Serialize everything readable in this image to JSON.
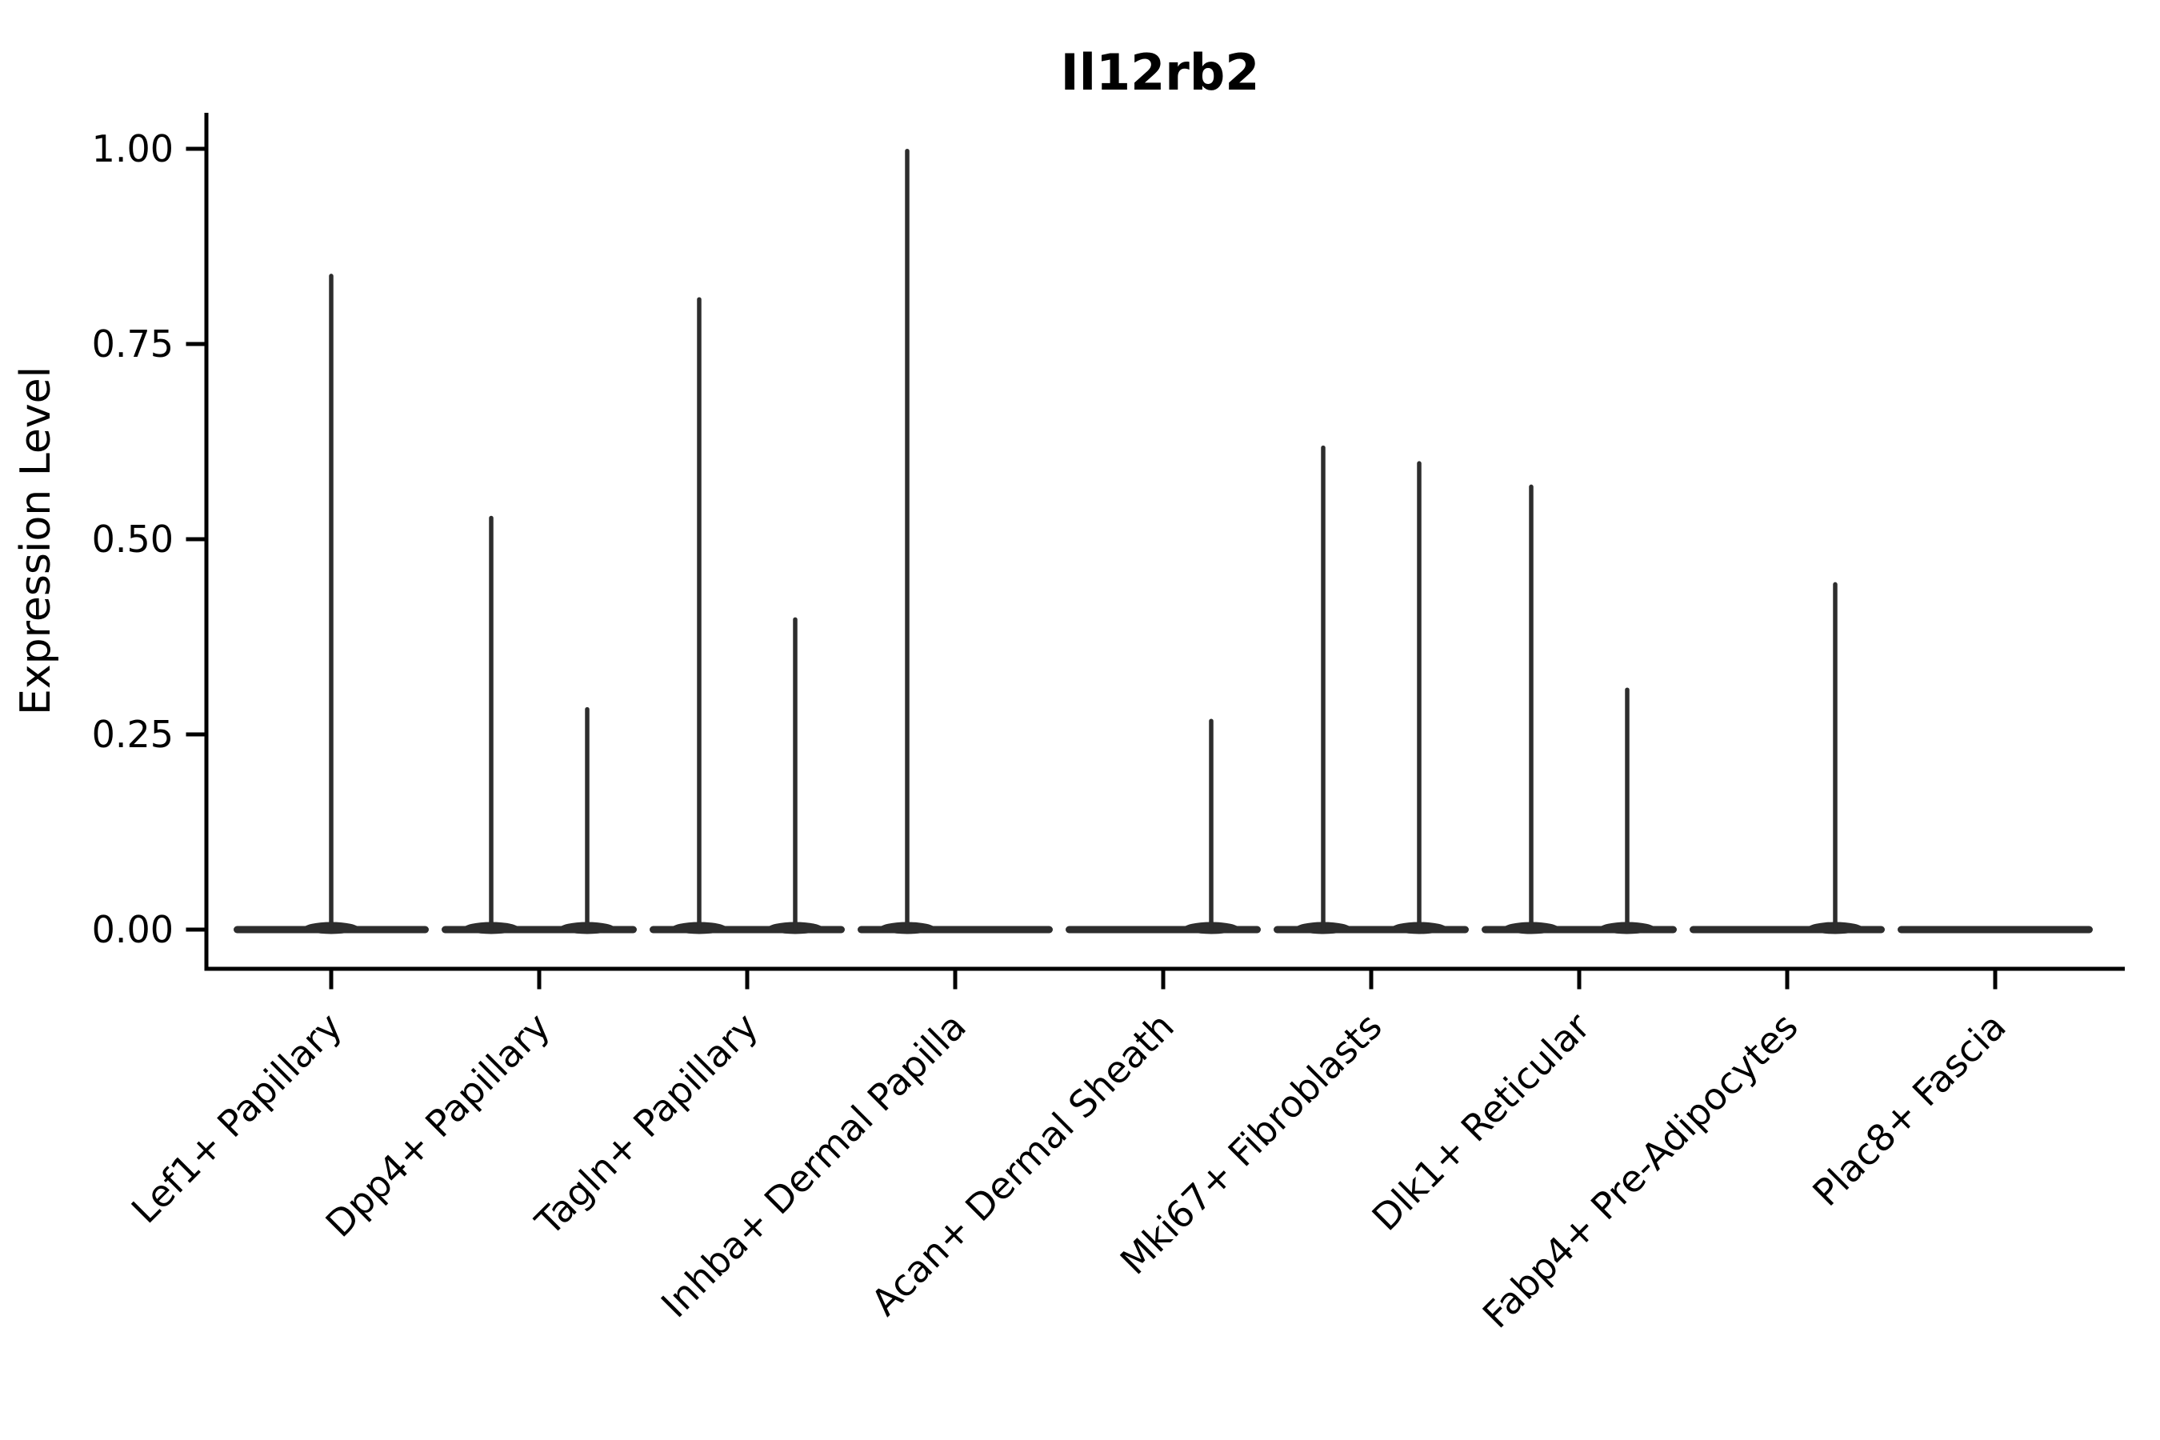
{
  "colors": {
    "background": "#ffffff",
    "violin": "#2d2d2d",
    "axis": "#000000",
    "text": "#000000"
  },
  "chart_data": {
    "type": "violin",
    "title": "Il12rb2",
    "xlabel": "",
    "ylabel": "Expression Level",
    "ylim": [
      -0.05,
      1.05
    ],
    "grid": false,
    "legend_position": "none",
    "ytick_labels": [
      "0.00",
      "0.25",
      "0.50",
      "0.75",
      "1.00"
    ],
    "ytick_values": [
      0,
      0.25,
      0.5,
      0.75,
      1.0
    ],
    "categories": [
      "Lef1+ Papillary",
      "Dpp4+ Papillary",
      "Tagln+ Papillary",
      "Inhba+ Dermal Papilla",
      "Acan+ Dermal Sheath",
      "Mki67+ Fibroblasts",
      "Dlk1+ Reticular",
      "Fabp4+ Pre-Adipocytes",
      "Plac8+ Fascia"
    ],
    "violins": [
      {
        "category": "Lef1+ Papillary",
        "baseline": 0,
        "spikes": [
          {
            "offset": 0,
            "max": 0.84
          }
        ]
      },
      {
        "category": "Dpp4+ Papillary",
        "baseline": 0,
        "spikes": [
          {
            "offset": -1,
            "max": 0.53
          },
          {
            "offset": 1,
            "max": 0.285
          }
        ]
      },
      {
        "category": "Tagln+ Papillary",
        "baseline": 0,
        "spikes": [
          {
            "offset": -1,
            "max": 0.81
          },
          {
            "offset": 1,
            "max": 0.4
          }
        ]
      },
      {
        "category": "Inhba+ Dermal Papilla",
        "baseline": 0,
        "spikes": [
          {
            "offset": -1,
            "max": 1.0
          }
        ]
      },
      {
        "category": "Acan+ Dermal Sheath",
        "baseline": 0,
        "spikes": [
          {
            "offset": 1,
            "max": 0.27
          }
        ]
      },
      {
        "category": "Mki67+ Fibroblasts",
        "baseline": 0,
        "spikes": [
          {
            "offset": -1,
            "max": 0.62
          },
          {
            "offset": 1,
            "max": 0.6
          }
        ]
      },
      {
        "category": "Dlk1+ Reticular",
        "baseline": 0,
        "spikes": [
          {
            "offset": -1,
            "max": 0.57
          },
          {
            "offset": 1,
            "max": 0.31
          }
        ]
      },
      {
        "category": "Fabp4+ Pre-Adipocytes",
        "baseline": 0,
        "spikes": [
          {
            "offset": 1,
            "max": 0.445
          }
        ]
      },
      {
        "category": "Plac8+ Fascia",
        "baseline": 0,
        "spikes": []
      }
    ]
  }
}
